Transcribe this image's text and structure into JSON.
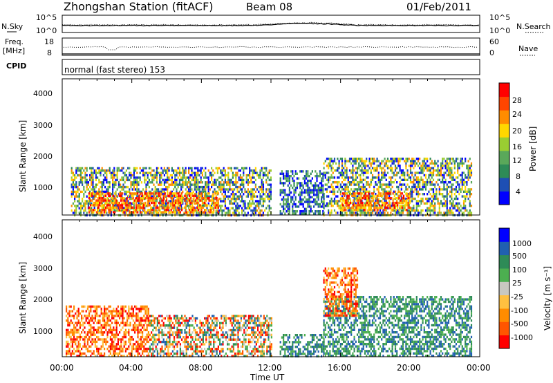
{
  "header": {
    "title": "Zhongshan Station (fitACF)",
    "beam": "Beam 08",
    "date": "01/Feb/2011"
  },
  "summary_panels": {
    "nsky_label": "N.Sky",
    "nsearch_label": "N.Search",
    "nsky_ticks_left": [
      "10^5",
      "10^0"
    ],
    "nsky_ticks_right": [
      "10^5",
      "10^0"
    ],
    "freq_label_1": "Freq.",
    "freq_label_2": "[MHz]",
    "freq_ticks": [
      "18",
      "8"
    ],
    "nave_label": "Nave",
    "nave_ticks": [
      "60",
      "0"
    ],
    "cpid_label": "CPID",
    "cpid_text": "normal (fast stereo) 153"
  },
  "colors": {
    "power": [
      "#0000ff",
      "#1e4fb4",
      "#2e8b57",
      "#5aa85a",
      "#9acd32",
      "#ffd700",
      "#ff8c00",
      "#ff4500",
      "#ff0000"
    ],
    "velocity": [
      "#ff0000",
      "#ff5500",
      "#ff8c00",
      "#ffc040",
      "#c8c8c0",
      "#4caf50",
      "#2e8b57",
      "#2060b0",
      "#0000ff"
    ]
  },
  "chart_data": [
    {
      "type": "heatmap",
      "panel": "power",
      "ylabel": "Slant Range [km]",
      "ylim": [
        180,
        4500
      ],
      "yticks": [
        "4000",
        "3000",
        "2000",
        "1000"
      ],
      "xlim_hours": [
        0,
        24
      ],
      "colorbar_label": "Power [dB]",
      "colorbar_ticks": [
        "28",
        "24",
        "20",
        "16",
        "12",
        "8",
        "4"
      ],
      "regions": [
        {
          "x": [
            0.5,
            12
          ],
          "y": [
            200,
            1700
          ],
          "level": "mixed"
        },
        {
          "x": [
            1.5,
            9
          ],
          "y": [
            250,
            900
          ],
          "level": "high"
        },
        {
          "x": [
            12.5,
            15
          ],
          "y": [
            250,
            1600
          ],
          "level": "low"
        },
        {
          "x": [
            15,
            23.5
          ],
          "y": [
            200,
            2000
          ],
          "level": "mixed"
        },
        {
          "x": [
            16,
            20
          ],
          "y": [
            350,
            900
          ],
          "level": "high"
        }
      ]
    },
    {
      "type": "heatmap",
      "panel": "velocity",
      "ylabel": "Slant Range [km]",
      "ylim": [
        180,
        4500
      ],
      "yticks": [
        "4000",
        "3000",
        "2000",
        "1000"
      ],
      "xlim_hours": [
        0,
        24
      ],
      "xticks": [
        "00:00",
        "04:00",
        "08:00",
        "12:00",
        "16:00",
        "20:00",
        "00:00"
      ],
      "xlabel": "Time UT",
      "colorbar_label": "Velocity [m s⁻¹]",
      "colorbar_ticks": [
        "1000",
        "500",
        "100",
        "25",
        "-25",
        "-100",
        "-500",
        "-1000"
      ],
      "regions": [
        {
          "x": [
            0.2,
            5
          ],
          "y": [
            200,
            1800
          ],
          "level": "negative"
        },
        {
          "x": [
            5,
            12
          ],
          "y": [
            200,
            1500
          ],
          "level": "mixed"
        },
        {
          "x": [
            12.5,
            15
          ],
          "y": [
            200,
            900
          ],
          "level": "positive"
        },
        {
          "x": [
            15,
            23.5
          ],
          "y": [
            200,
            2100
          ],
          "level": "positive"
        },
        {
          "x": [
            15,
            17
          ],
          "y": [
            1500,
            3000
          ],
          "level": "negative"
        }
      ]
    }
  ]
}
